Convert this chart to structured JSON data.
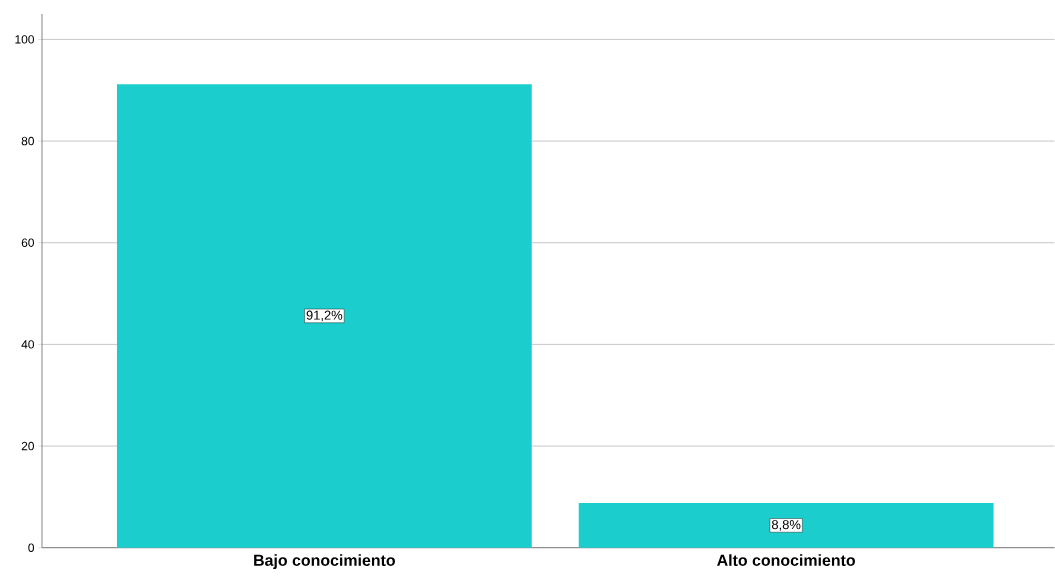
{
  "chart_data": {
    "type": "bar",
    "categories": [
      "Bajo conocimiento",
      "Alto conocimiento"
    ],
    "values": [
      91.2,
      8.8
    ],
    "value_labels": [
      "91,2%",
      "8,8%"
    ],
    "color": "#1ccdcd",
    "ylim": [
      0,
      105
    ],
    "yticks": [
      0,
      20,
      40,
      60,
      80,
      100
    ],
    "grid": "y"
  }
}
